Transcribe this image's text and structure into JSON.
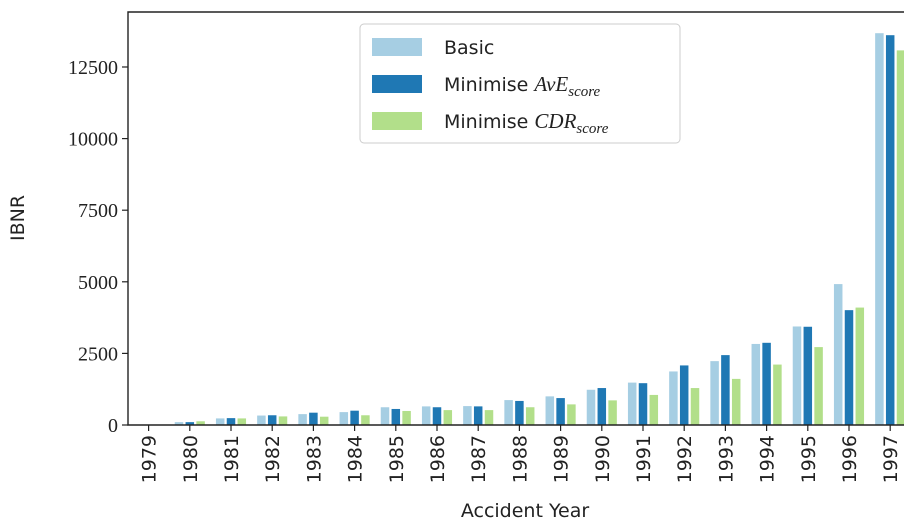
{
  "chart_data": {
    "type": "bar",
    "x_label": "Accident Year",
    "y_label": "IBNR",
    "categories": [
      "1979",
      "1980",
      "1981",
      "1982",
      "1983",
      "1984",
      "1985",
      "1986",
      "1987",
      "1988",
      "1989",
      "1990",
      "1991",
      "1992",
      "1993",
      "1994",
      "1995",
      "1996",
      "1997"
    ],
    "series": [
      {
        "name": "Basic",
        "color": "#a6cee3",
        "values": [
          0,
          100,
          230,
          330,
          380,
          450,
          620,
          650,
          660,
          870,
          1000,
          1230,
          1480,
          1870,
          2230,
          2830,
          3440,
          4920,
          13680
        ]
      },
      {
        "name": "Minimise $AvE_{score}$",
        "color": "#1f78b4",
        "values": [
          0,
          100,
          240,
          340,
          430,
          500,
          560,
          620,
          650,
          840,
          940,
          1290,
          1460,
          2080,
          2440,
          2870,
          3430,
          4010,
          13610
        ]
      },
      {
        "name": "Minimise $CDR_{score}$",
        "color": "#b2df8a",
        "values": [
          0,
          130,
          230,
          300,
          290,
          340,
          490,
          520,
          520,
          620,
          720,
          860,
          1050,
          1290,
          1610,
          2110,
          2720,
          4100,
          13080
        ]
      }
    ],
    "ylim": [
      0,
      14420
    ],
    "yticks": [
      0,
      2500,
      5000,
      7500,
      10000,
      12500
    ],
    "legend": "upper center"
  }
}
